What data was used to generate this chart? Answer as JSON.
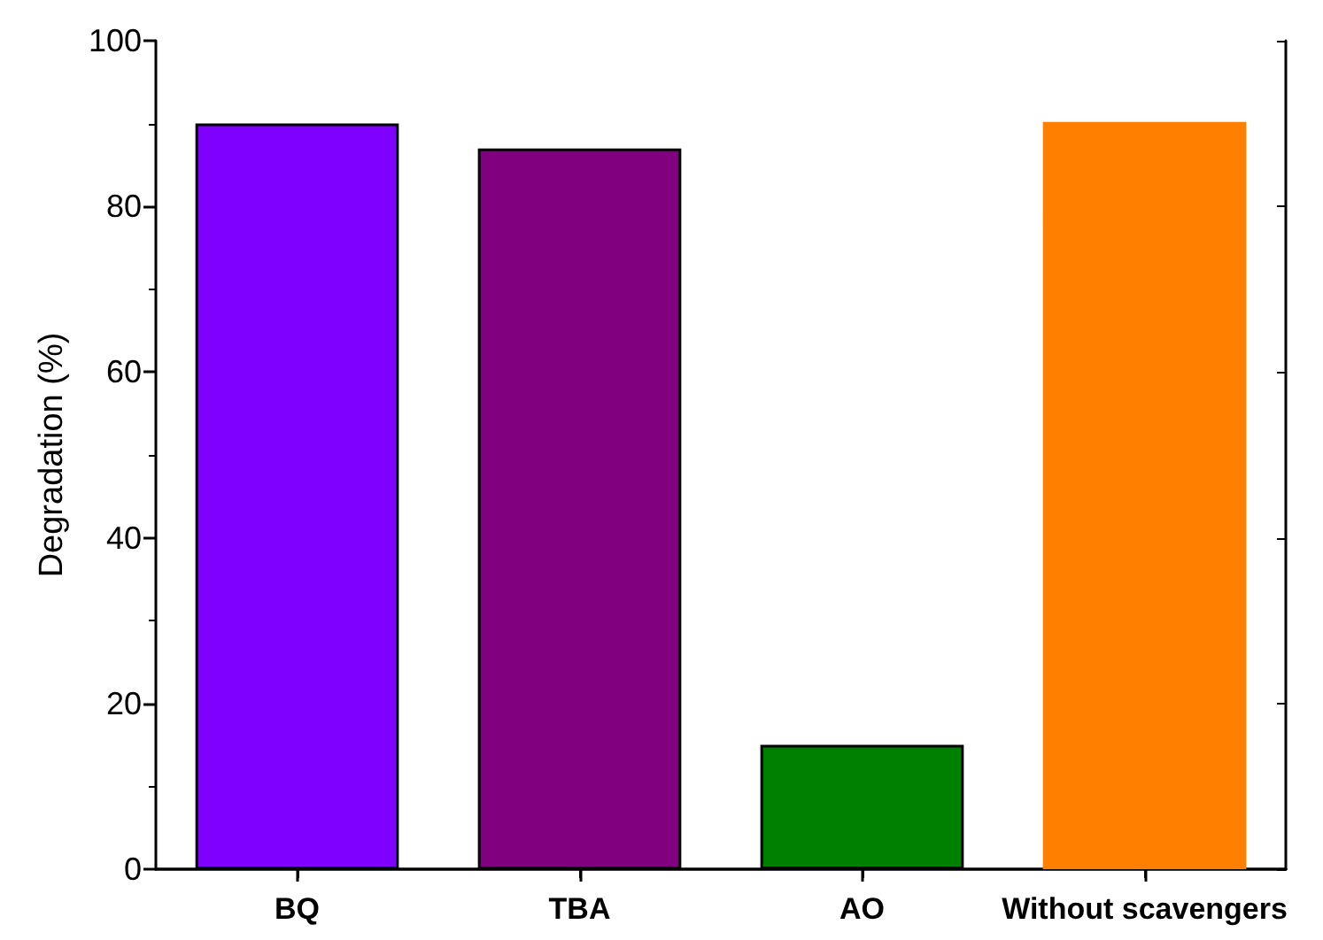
{
  "chart_data": {
    "type": "bar",
    "ylabel": "Degradation (%)",
    "categories": [
      "BQ",
      "TBA",
      "AO",
      "Without scavengers"
    ],
    "values": [
      90.0,
      87.0,
      15.0,
      90.2
    ],
    "colors": [
      "#7f00ff",
      "#800080",
      "#008000",
      "#ff8000"
    ],
    "ylim": [
      0,
      100
    ],
    "yticks": [
      0,
      20,
      40,
      60,
      80,
      100
    ],
    "grid": false
  }
}
